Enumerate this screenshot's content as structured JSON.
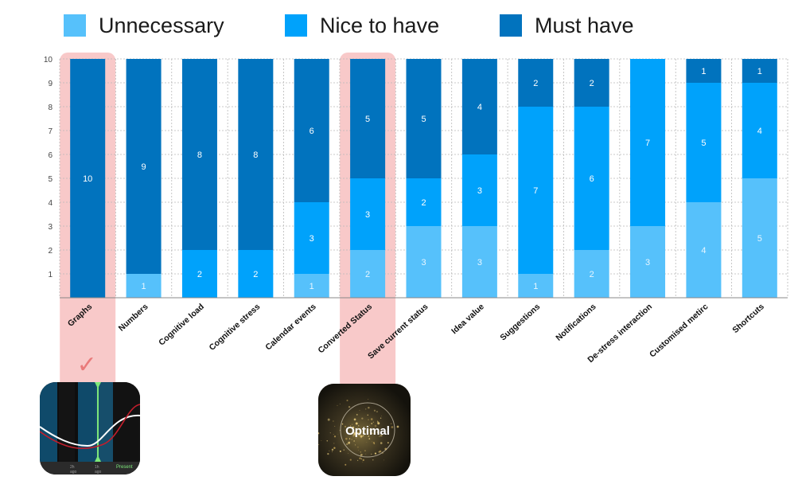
{
  "colors": {
    "unnecessary": "#56c1fb",
    "nice_to_have": "#00a2fb",
    "must_have": "#0173be",
    "highlight": "#f8c9c9",
    "checkmark": "#e97a7a"
  },
  "legend": [
    {
      "name": "Unnecessary",
      "color": "#56c1fb"
    },
    {
      "name": "Nice to have",
      "color": "#00a2fb"
    },
    {
      "name": "Must have",
      "color": "#0173be"
    }
  ],
  "chart_data": {
    "type": "bar",
    "stacked": true,
    "categories": [
      "Graphs",
      "Numbers",
      "Cognitive load",
      "Cognitive stress",
      "Calendar events",
      "Converted Status",
      "Save current status",
      "Idea value",
      "Suggestions",
      "Notifications",
      "De-stress interaction",
      "Customised metirc",
      "Shortcuts"
    ],
    "series": [
      {
        "name": "Unnecessary",
        "values": [
          0,
          1,
          0,
          0,
          1,
          2,
          3,
          3,
          1,
          2,
          3,
          4,
          5
        ]
      },
      {
        "name": "Nice to have",
        "values": [
          0,
          0,
          2,
          2,
          3,
          3,
          2,
          3,
          7,
          6,
          7,
          5,
          4
        ]
      },
      {
        "name": "Must have",
        "values": [
          10,
          9,
          8,
          8,
          6,
          5,
          5,
          4,
          2,
          2,
          0,
          1,
          1
        ]
      }
    ],
    "ylim": [
      0,
      10
    ],
    "yticks": [
      1,
      2,
      3,
      4,
      5,
      6,
      7,
      8,
      9,
      10
    ],
    "grid": true,
    "legend_position": "top",
    "highlighted_categories": [
      "Graphs",
      "Converted Status"
    ],
    "annotations": [
      "✓"
    ]
  },
  "thumbnails": {
    "graph": {
      "tick_labels": [
        "2h\nago",
        "1h\nago",
        "Present"
      ]
    },
    "optimal": {
      "label": "Optimal"
    }
  }
}
